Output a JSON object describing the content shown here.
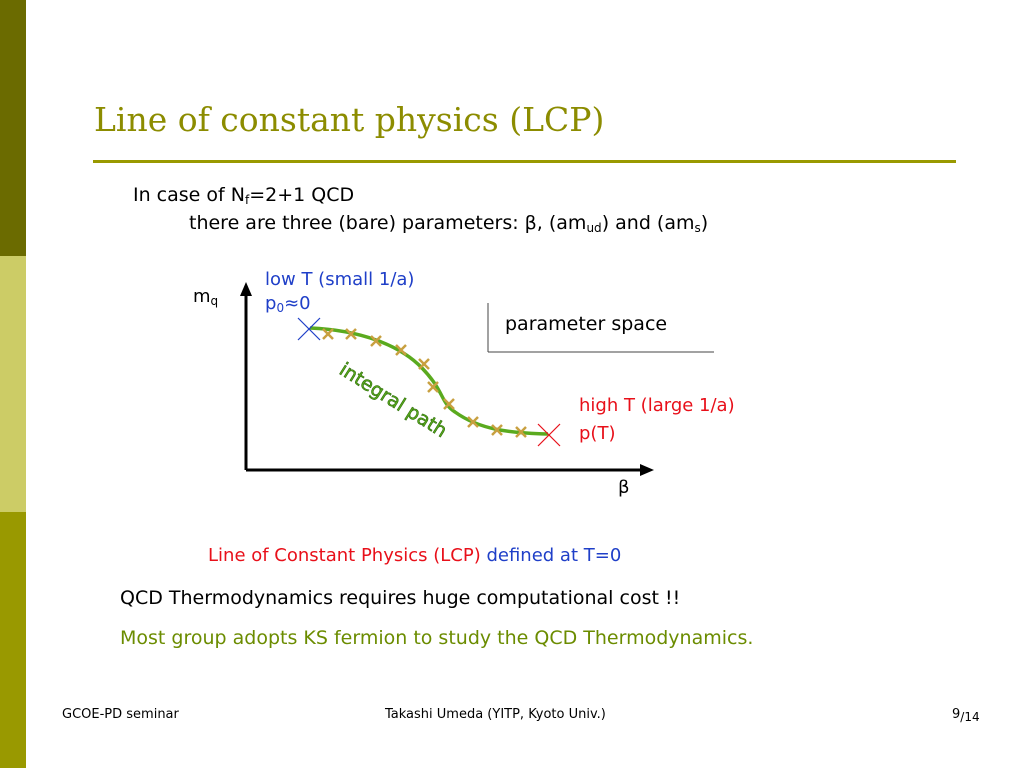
{
  "slide": {
    "title": "Line of constant physics (LCP)",
    "intro": {
      "line1_prefix": "In case of N",
      "line1_sub": "f",
      "line1_suffix": "=2+1 QCD",
      "line2_prefix": "there are three (bare) parameters:  β, (am",
      "line2_sub1": "ud",
      "line2_mid": ") and (am",
      "line2_sub2": "s",
      "line2_suffix": ")"
    },
    "diagram": {
      "y_axis_main": "m",
      "y_axis_sub": "q",
      "x_axis": "β",
      "low_T_line1": "low T (small 1/a)",
      "low_T_p": "p",
      "low_T_p_sub": "0",
      "low_T_p_value": "≈0",
      "high_T_line1": "high T (large 1/a)",
      "high_T_line2": "p(T)",
      "parameter_space": "parameter space",
      "path_label": "integral path",
      "colors": {
        "curve": "#5aaa1e",
        "marks": "#c8a040",
        "low_end": "#1f3fc8",
        "high_end": "#e8101a",
        "path_label": "#5aaa1e"
      }
    },
    "lcp_red": "Line of Constant Physics (LCP)",
    "lcp_blue": "defined at T=0",
    "cost": "QCD Thermodynamics requires huge computational cost !!",
    "ks": "Most group adopts KS fermion to study the QCD Thermodynamics."
  },
  "footer": {
    "left": "GCOE-PD seminar",
    "center": "Takashi Umeda (YITP, Kyoto Univ.)",
    "page": "9",
    "total": "/14"
  }
}
